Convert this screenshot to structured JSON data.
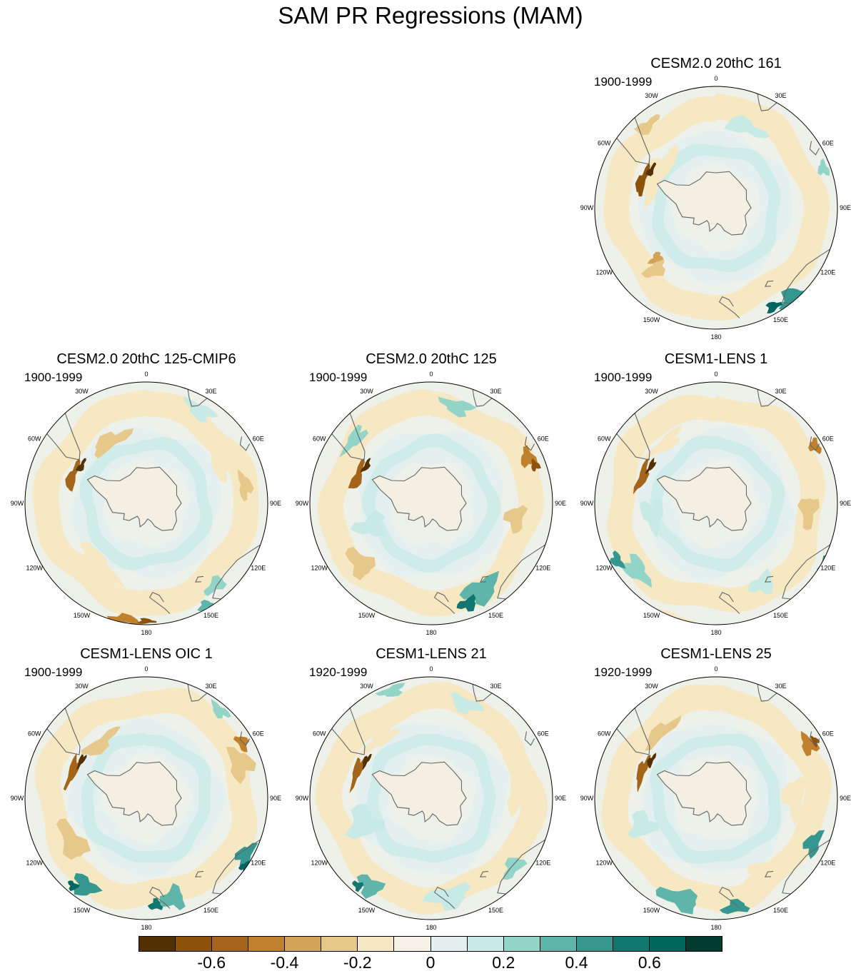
{
  "title": "SAM PR Regressions (MAM)",
  "longitude_labels": [
    "0",
    "30E",
    "60E",
    "90E",
    "120E",
    "150E",
    "180",
    "150W",
    "120W",
    "90W",
    "60W",
    "30W"
  ],
  "panels": [
    {
      "title": "CESM2.0 20thC 161",
      "years": "1900-1999",
      "pattern": 0
    },
    {
      "title": "CESM2.0 20thC 125-CMIP6",
      "years": "1900-1999",
      "pattern": 1
    },
    {
      "title": "CESM2.0 20thC 125",
      "years": "1900-1999",
      "pattern": 2
    },
    {
      "title": "CESM1-LENS 1",
      "years": "1900-1999",
      "pattern": 3
    },
    {
      "title": "CESM1-LENS OIC 1",
      "years": "1900-1999",
      "pattern": 4
    },
    {
      "title": "CESM1-LENS 21",
      "years": "1920-1999",
      "pattern": 5
    },
    {
      "title": "CESM1-LENS 25",
      "years": "1920-1999",
      "pattern": 6
    }
  ],
  "colorbar": {
    "colors": [
      "#543005",
      "#8c510a",
      "#a4651a",
      "#bf812d",
      "#d2a45a",
      "#e6c98a",
      "#f6e8c3",
      "#f5f1e6",
      "#e4f0ef",
      "#c7eae5",
      "#92d4c7",
      "#5fb5a9",
      "#35978f",
      "#117770",
      "#01665e",
      "#003c30"
    ],
    "labels": [
      "-0.6",
      "-0.4",
      "-0.2",
      "0",
      "0.2",
      "0.4",
      "0.6"
    ]
  },
  "colors": {
    "coast": "#666666",
    "ocean_base": "#eef0ea"
  }
}
